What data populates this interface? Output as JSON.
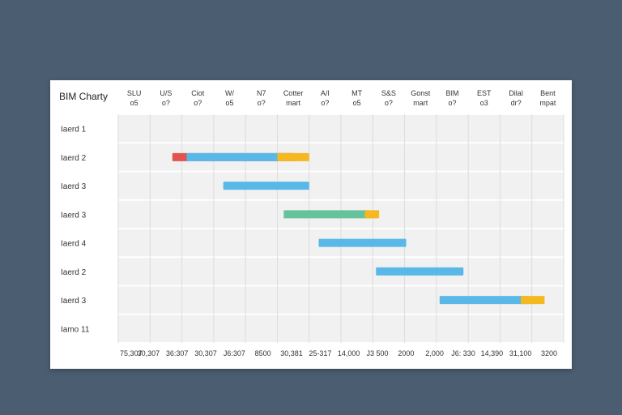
{
  "chart_data": {
    "type": "gantt",
    "title": "BIM Charty",
    "column_headers": [
      [
        "SLU",
        "o5"
      ],
      [
        "U/S",
        "o?"
      ],
      [
        "Ciot",
        "o?"
      ],
      [
        "W/",
        "o5"
      ],
      [
        "N7",
        "o?"
      ],
      [
        "Cotter",
        "mart"
      ],
      [
        "A/I",
        "o?"
      ],
      [
        "MT",
        "o5"
      ],
      [
        "S&S",
        "o?"
      ],
      [
        "Gonst",
        "mart"
      ],
      [
        "BIM",
        "o?"
      ],
      [
        "EST",
        "o3"
      ],
      [
        "Dilal",
        "dr?"
      ],
      [
        "Bent",
        "mpat"
      ]
    ],
    "rows": [
      "Iaerd 1",
      "Iaerd 2",
      "Iaerd 3",
      "Iaerd 3",
      "Iaerd 4",
      "Iaerd 2",
      "Iaerd 3",
      "Iamo 11"
    ],
    "x_tick_labels": [
      "75,307",
      "30,307",
      "36:307",
      "30,307",
      "J6:307",
      "8500",
      "30,381",
      "25-317",
      "14,000",
      "J3 500",
      "2000",
      "2,000",
      "J6: 330",
      "14,390",
      "31,100",
      "3200"
    ],
    "x_range": [
      0,
      14
    ],
    "bars": [
      {
        "row": 1,
        "start": 1.7,
        "end": 5.55,
        "color": "#e35350"
      },
      {
        "row": 1,
        "start": 2.15,
        "end": 5.35,
        "color": "#5ab8e8"
      },
      {
        "row": 1,
        "start": 5.0,
        "end": 6.0,
        "color": "#f5b820"
      },
      {
        "row": 2,
        "start": 3.3,
        "end": 6.0,
        "color": "#5ab8e8"
      },
      {
        "row": 3,
        "start": 5.2,
        "end": 7.95,
        "color": "#66c29c"
      },
      {
        "row": 3,
        "start": 7.75,
        "end": 8.2,
        "color": "#f5b820"
      },
      {
        "row": 4,
        "start": 6.3,
        "end": 9.05,
        "color": "#5ab8e8"
      },
      {
        "row": 5,
        "start": 8.1,
        "end": 10.85,
        "color": "#5ab8e8"
      },
      {
        "row": 6,
        "start": 10.1,
        "end": 12.95,
        "color": "#5ab8e8"
      },
      {
        "row": 6,
        "start": 12.65,
        "end": 13.4,
        "color": "#f5b820"
      }
    ],
    "grid": true
  }
}
